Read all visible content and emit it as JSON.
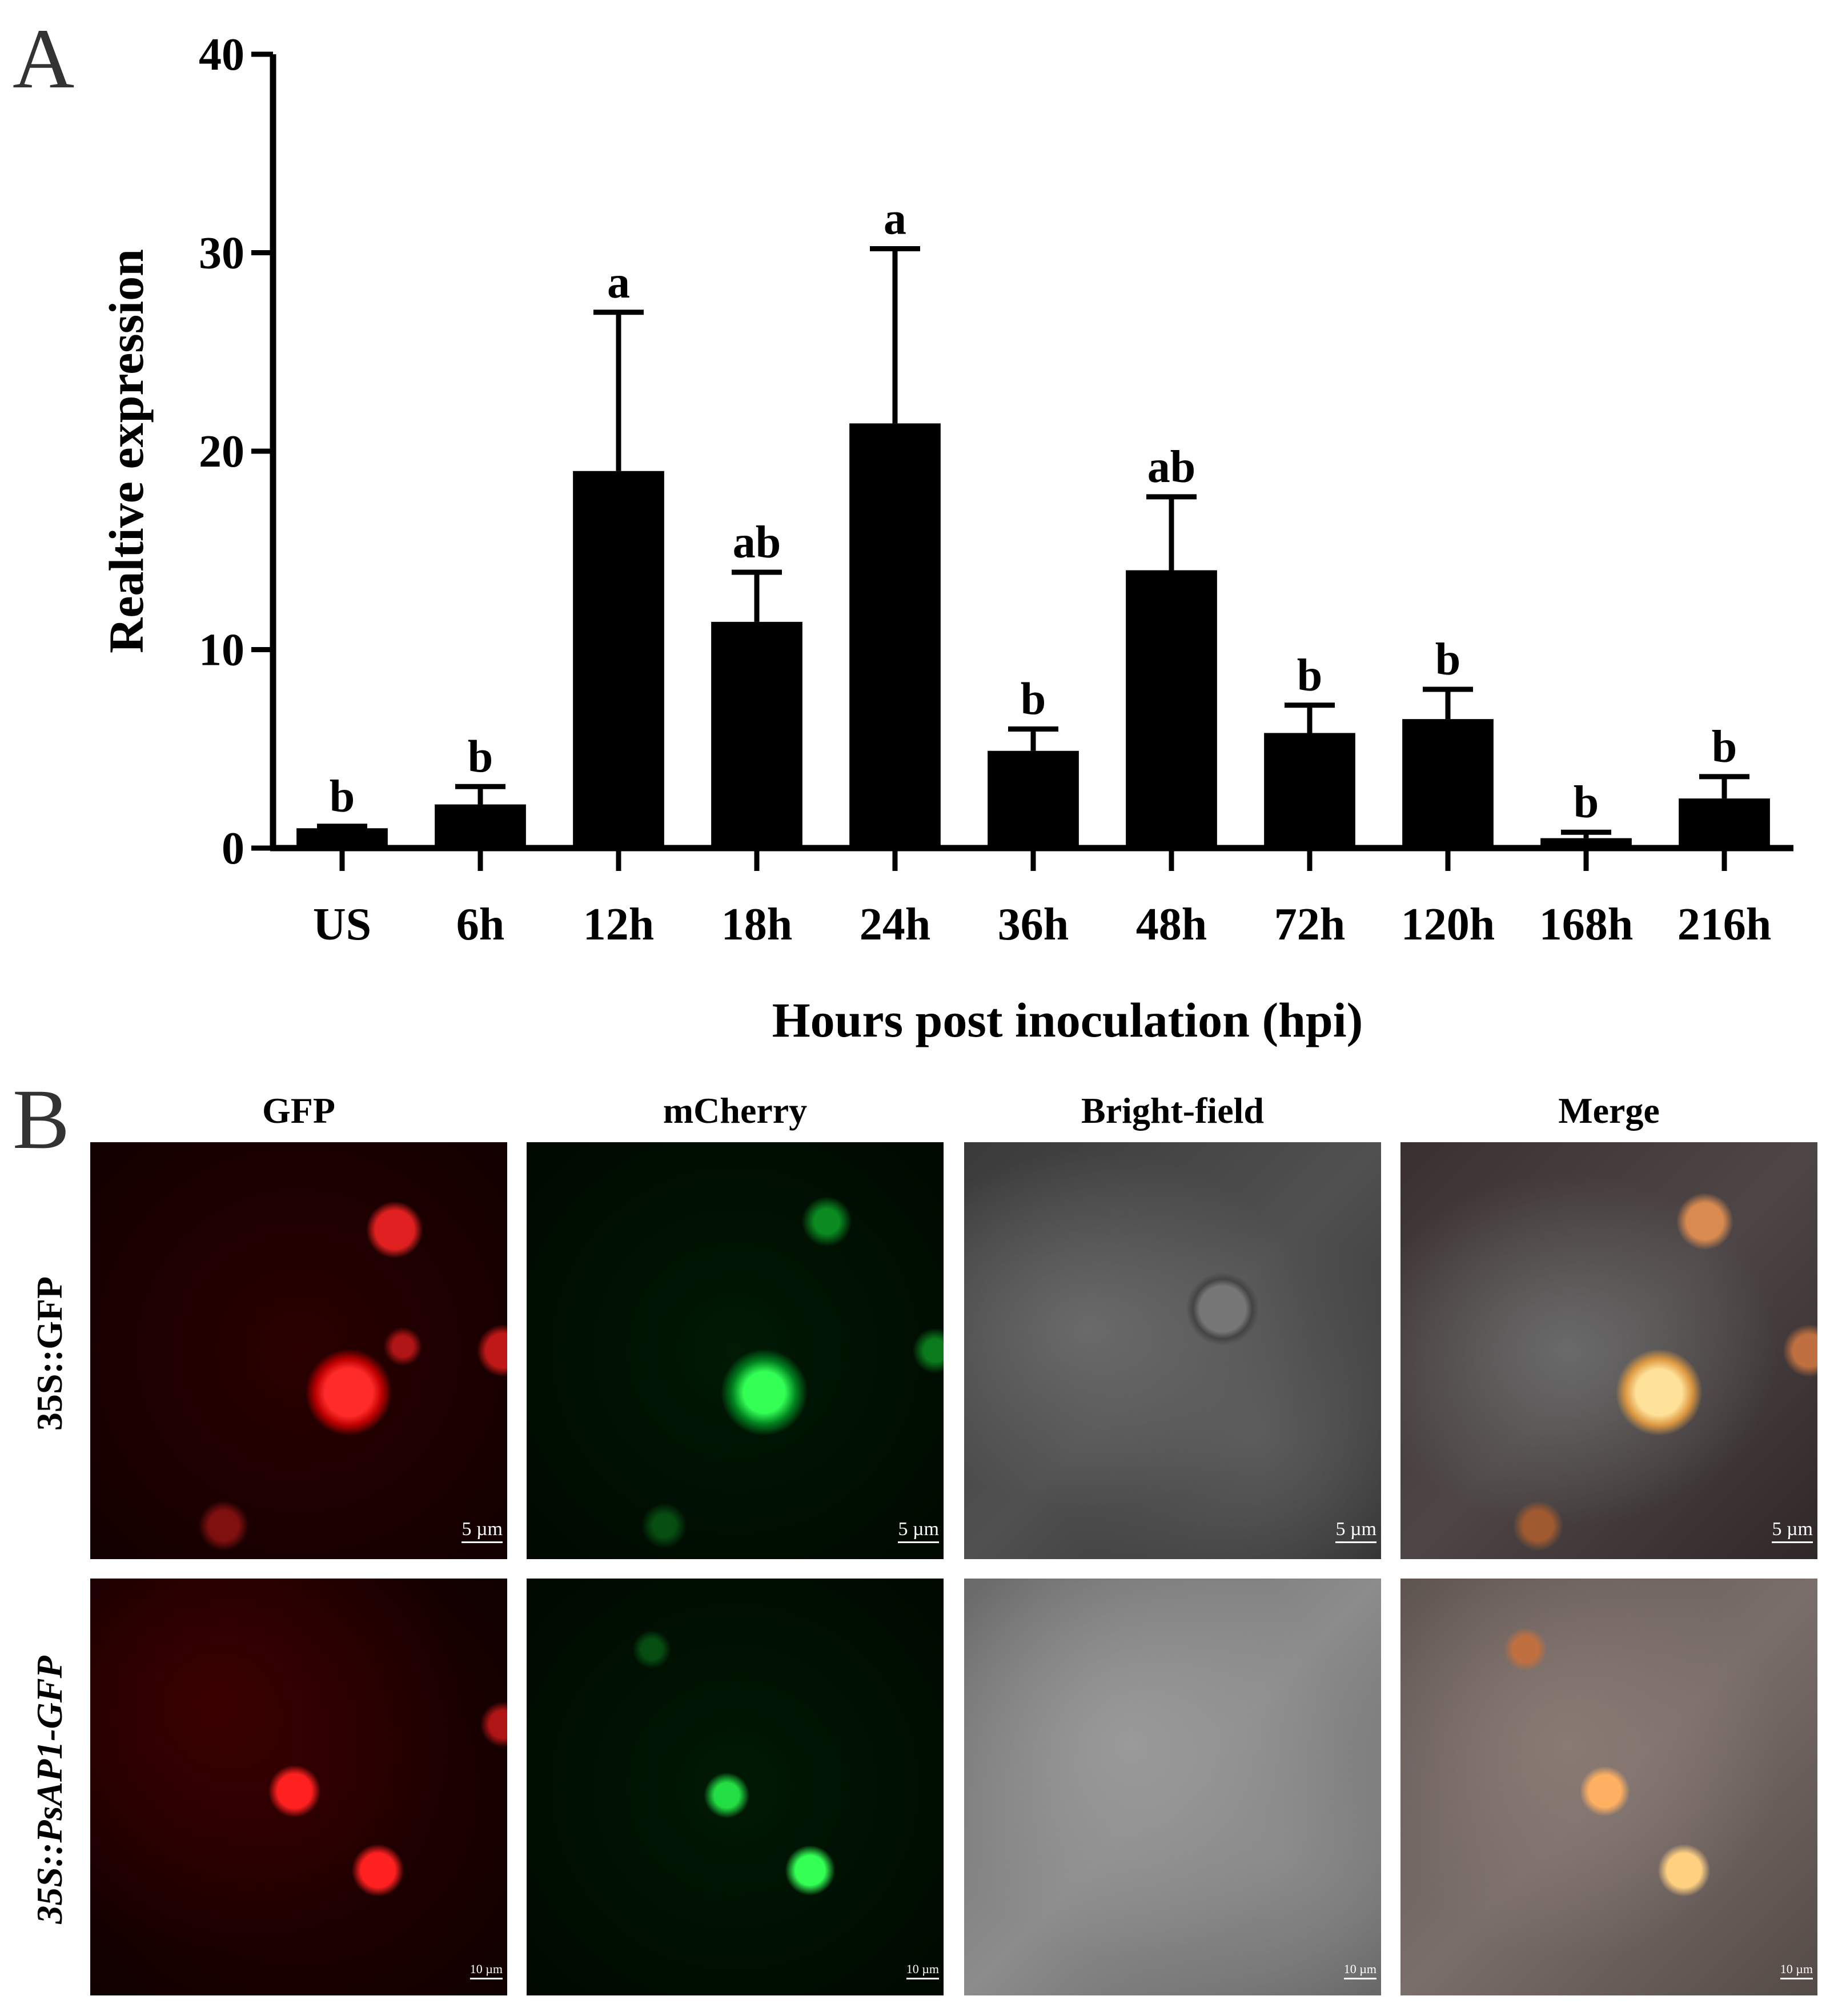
{
  "panels": {
    "a_label": "A",
    "b_label": "B"
  },
  "chart_data": {
    "type": "bar",
    "title": "",
    "xlabel": "Hours post inoculation (hpi)",
    "ylabel": "Realtive expression",
    "ylim": [
      0,
      40
    ],
    "yticks": [
      0,
      10,
      20,
      30,
      40
    ],
    "categories": [
      "US",
      "6h",
      "12h",
      "18h",
      "24h",
      "36h",
      "48h",
      "72h",
      "120h",
      "168h",
      "216h"
    ],
    "values": [
      1.0,
      2.2,
      19.0,
      11.4,
      21.4,
      4.9,
      14.0,
      5.8,
      6.5,
      0.5,
      2.5
    ],
    "errors": [
      0.1,
      0.9,
      8.0,
      2.5,
      8.8,
      1.1,
      3.7,
      1.4,
      1.5,
      0.3,
      1.1
    ],
    "significance": [
      "b",
      "b",
      "a",
      "ab",
      "a",
      "b",
      "ab",
      "b",
      "b",
      "b",
      "b"
    ],
    "bar_color": "#000000",
    "grid": false,
    "legend": "none"
  },
  "microscopy": {
    "columns": [
      "GFP",
      "mCherry",
      "Bright-field",
      "Merge"
    ],
    "rows": [
      {
        "label": "35S::GFP",
        "italic": false,
        "scale": "5 µm"
      },
      {
        "label": "35S::PsAP1-GFP",
        "italic": true,
        "scale": "10 µm"
      }
    ]
  }
}
